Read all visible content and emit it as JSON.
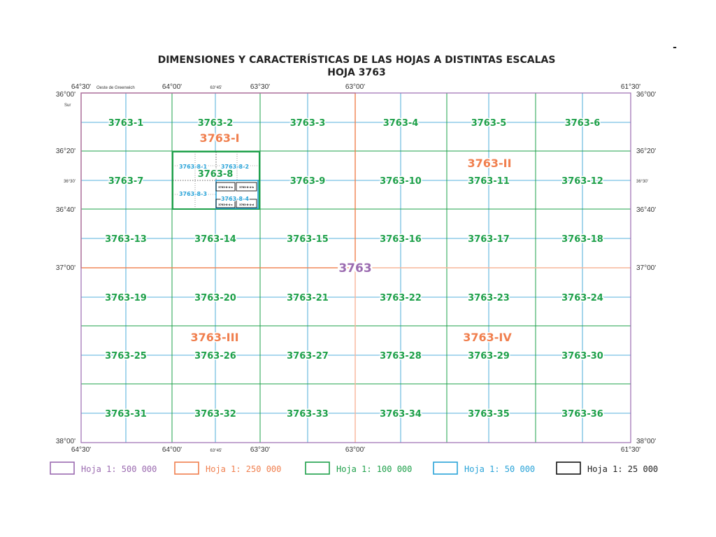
{
  "title": {
    "line1": "DIMENSIONES Y CARACTERÍSTICAS DE LAS HOJAS A DISTINTAS ESCALAS",
    "line2": "HOJA 3763"
  },
  "corner_mark": "-",
  "top_lon": [
    "64°30'",
    "64°00'",
    "63°45'",
    "63°30'",
    "63°00'",
    "61°30'"
  ],
  "bottom_lon": [
    "64°30'",
    "64°00'",
    "63°45'",
    "63°30'",
    "63°00'",
    "61°30'"
  ],
  "meridian_note": "Oeste de Greenwich",
  "hemisphere_note": "Sur",
  "left_lat": [
    "36°00'",
    "36°20'",
    "36°30'",
    "36°40'",
    "37°00'",
    "38°00'"
  ],
  "right_lat": [
    "36°00'",
    "36°20'",
    "36°30'",
    "36°40'",
    "37°00'",
    "38°00'"
  ],
  "sheets_100k": [
    "3763-1",
    "3763-2",
    "3763-3",
    "3763-4",
    "3763-5",
    "3763-6",
    "3763-7",
    "3763-8",
    "3763-9",
    "3763-10",
    "3763-11",
    "3763-12",
    "3763-13",
    "3763-14",
    "3763-15",
    "3763-16",
    "3763-17",
    "3763-18",
    "3763-19",
    "3763-20",
    "3763-21",
    "3763-22",
    "3763-23",
    "3763-24",
    "3763-25",
    "3763-26",
    "3763-27",
    "3763-28",
    "3763-29",
    "3763-30",
    "3763-31",
    "3763-32",
    "3763-33",
    "3763-34",
    "3763-35",
    "3763-36"
  ],
  "sheets_250k": [
    "3763-I",
    "3763-II",
    "3763-III",
    "3763-IV"
  ],
  "sheet_500k": "3763",
  "sheets_50k": [
    "3763-8-1",
    "3763-8-2",
    "3763-8-3",
    "3763-8-4"
  ],
  "sheets_25k": [
    "3763-8-4-a",
    "3763-8-4-b",
    "3763-8-4-c",
    "3763-8-4-d"
  ],
  "legend": [
    {
      "label": "Hoja 1: 500 000",
      "color": "#9b6bb0"
    },
    {
      "label": "Hoja 1: 250 000",
      "color": "#f07f4e"
    },
    {
      "label": "Hoja 1: 100 000",
      "color": "#1ea04a"
    },
    {
      "label": "Hoja 1: 50 000",
      "color": "#29a3d8"
    },
    {
      "label": "Hoja 1: 25 000",
      "color": "#111111"
    }
  ],
  "colors": {
    "c500k": "#9b6bb0",
    "c250k": "#f07f4e",
    "c100k": "#1ea04a",
    "c50k": "#29a3d8",
    "c25k": "#111111"
  }
}
